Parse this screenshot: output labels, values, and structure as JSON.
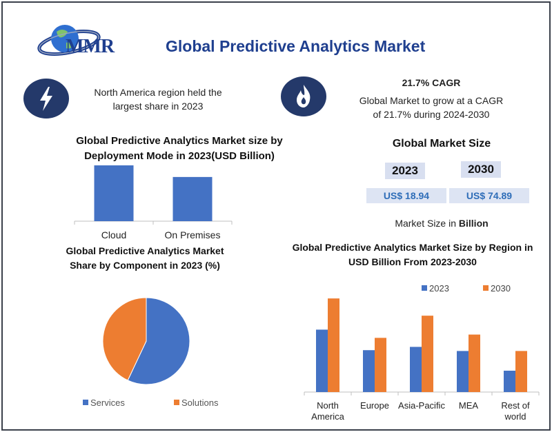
{
  "header": {
    "logo_text": "MMR",
    "title": "Global Predictive Analytics Market"
  },
  "highlights": {
    "region_line1": "North America region held the",
    "region_line2": "largest share in 2023",
    "cagr_title": "21.7% CAGR",
    "cagr_line1": "Global Market to grow at a CAGR",
    "cagr_line2": "of 21.7% during 2024-2030"
  },
  "market_size": {
    "title": "Global Market Size",
    "year_a": "2023",
    "year_b": "2030",
    "value_a": "US$ 18.94",
    "value_b": "US$ 74.89",
    "note_prefix": "Market Size in",
    "note_unit": "Billion"
  },
  "colors": {
    "blue": "#4472c4",
    "orange": "#ed7d31",
    "navy": "#24396a",
    "title": "#1f3f8f"
  },
  "chart_data": [
    {
      "type": "bar",
      "title_line1": "Global Predictive Analytics Market size by",
      "title_line2": "Deployment Mode in 2023(USD Billion)",
      "categories": [
        "Cloud",
        "On Premises"
      ],
      "values": [
        12.0,
        9.5
      ],
      "ylim": [
        0,
        12
      ]
    },
    {
      "type": "pie",
      "title_line1": "Global Predictive Analytics Market",
      "title_line2": "Share by Component in 2023 (%)",
      "labels": [
        "Services",
        "Solutions"
      ],
      "values": [
        57,
        43
      ],
      "legend": "bottom"
    },
    {
      "type": "bar",
      "title_line1": "Global Predictive Analytics Market Size by Region in",
      "title_line2": "USD Billion From 2023-2030",
      "categories": [
        [
          "North",
          "America"
        ],
        [
          "Europe"
        ],
        [
          "Asia-Pacific"
        ],
        [
          "MEA"
        ],
        [
          "Rest of",
          "world"
        ]
      ],
      "series": [
        {
          "name": "2023",
          "values": [
            7.6,
            5.1,
            5.5,
            5.0,
            2.6
          ]
        },
        {
          "name": "2030",
          "values": [
            11.4,
            6.6,
            9.3,
            7.0,
            5.0
          ]
        }
      ],
      "ylim": [
        0,
        12
      ],
      "legend": "top"
    }
  ]
}
